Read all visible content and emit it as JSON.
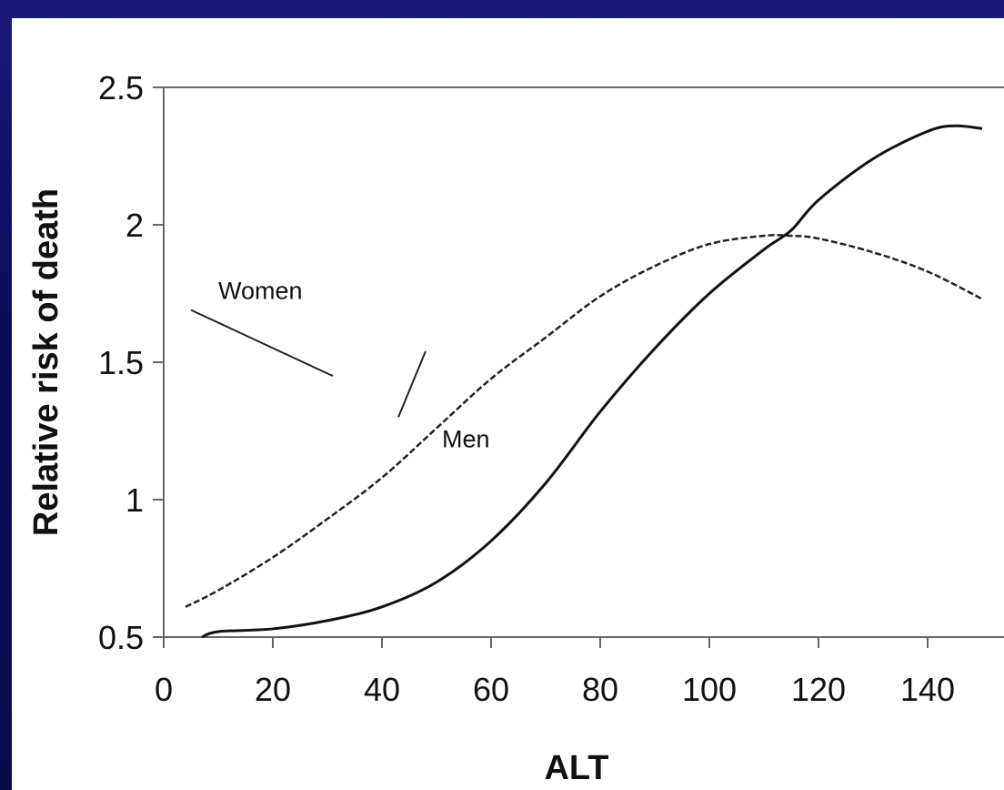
{
  "chart_data": {
    "type": "line",
    "title": "",
    "xlabel": "ALT",
    "ylabel": "Relative risk of death",
    "xlim": [
      0,
      150
    ],
    "ylim": [
      0.5,
      2.5
    ],
    "x_ticks": [
      0,
      20,
      40,
      60,
      80,
      100,
      120,
      140
    ],
    "y_ticks": [
      0.5,
      1,
      1.5,
      2,
      2.5
    ],
    "grid": false,
    "legend": "none",
    "series": [
      {
        "name": "Women",
        "style": "dashed",
        "color": "#222222",
        "x": [
          4,
          10,
          20,
          30,
          40,
          50,
          60,
          70,
          80,
          90,
          100,
          110,
          115,
          120,
          130,
          140,
          150
        ],
        "y": [
          0.61,
          0.67,
          0.79,
          0.93,
          1.08,
          1.26,
          1.44,
          1.59,
          1.74,
          1.85,
          1.93,
          1.96,
          1.96,
          1.95,
          1.9,
          1.83,
          1.73
        ]
      },
      {
        "name": "Men",
        "style": "solid",
        "color": "#111111",
        "x": [
          7,
          10,
          20,
          30,
          40,
          50,
          60,
          70,
          80,
          90,
          100,
          110,
          115,
          120,
          130,
          140,
          145,
          150
        ],
        "y": [
          0.5,
          0.52,
          0.53,
          0.56,
          0.61,
          0.7,
          0.85,
          1.06,
          1.32,
          1.55,
          1.75,
          1.91,
          1.98,
          2.09,
          2.24,
          2.34,
          2.36,
          2.35
        ]
      }
    ],
    "annotations": [
      {
        "text": "Women",
        "label_at": [
          10,
          1.73
        ],
        "leader_from": [
          5,
          1.69
        ],
        "leader_to": [
          31,
          1.45
        ]
      },
      {
        "text": "Men",
        "label_at": [
          51,
          1.19
        ],
        "leader_from": [
          43,
          1.3
        ],
        "leader_to": [
          48,
          1.54
        ]
      }
    ]
  }
}
